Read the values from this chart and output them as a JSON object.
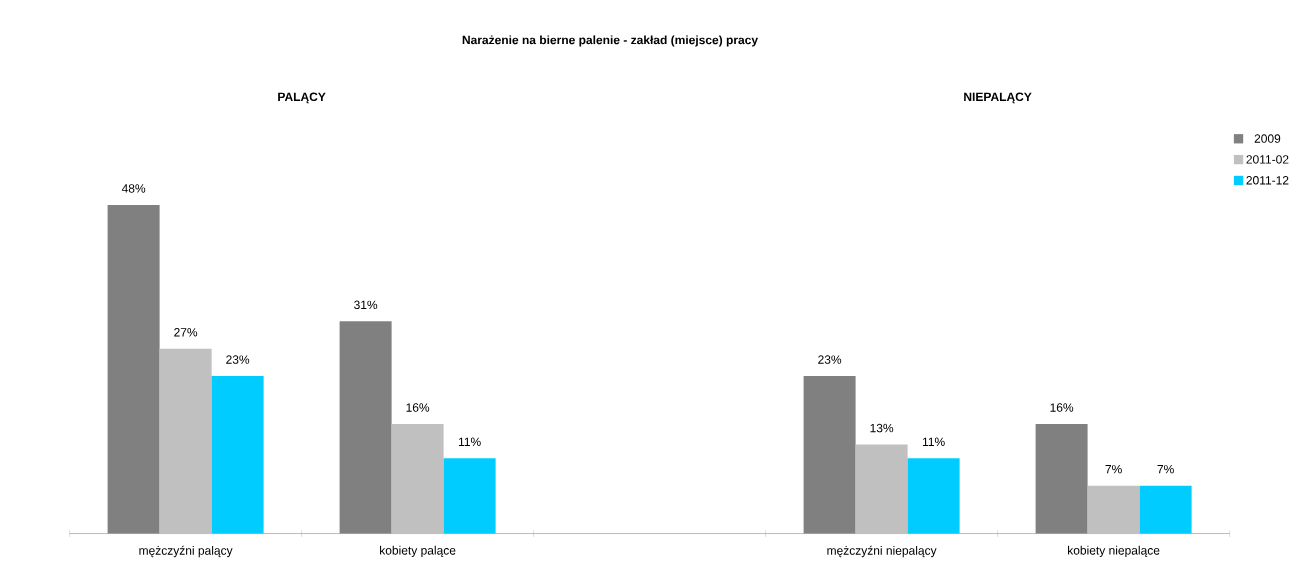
{
  "chart_data": {
    "type": "bar",
    "title": "Narażenie na bierne palenie - zakład (miejsce) pracy",
    "categories": [
      "mężczyźni palący",
      "kobiety palące",
      null,
      "mężczyźni niepalący",
      "kobiety niepalące"
    ],
    "series": [
      {
        "name": "2009",
        "color": "#808080",
        "values": [
          48,
          31,
          null,
          23,
          16
        ],
        "value_labels": [
          "48%",
          "31%",
          null,
          "23%",
          "16%"
        ]
      },
      {
        "name": "2011-02",
        "color": "#c0c0c0",
        "values": [
          27,
          16,
          null,
          13,
          7
        ],
        "value_labels": [
          "27%",
          "16%",
          null,
          "13%",
          "7%"
        ]
      },
      {
        "name": "2011-12",
        "color": "#00ccff",
        "values": [
          23,
          11,
          null,
          11,
          7
        ],
        "value_labels": [
          "23%",
          "11%",
          null,
          "11%",
          "7%"
        ]
      }
    ],
    "annotations": [
      "PALĄCY",
      "NIEPALĄCY"
    ],
    "legend": "top right"
  }
}
